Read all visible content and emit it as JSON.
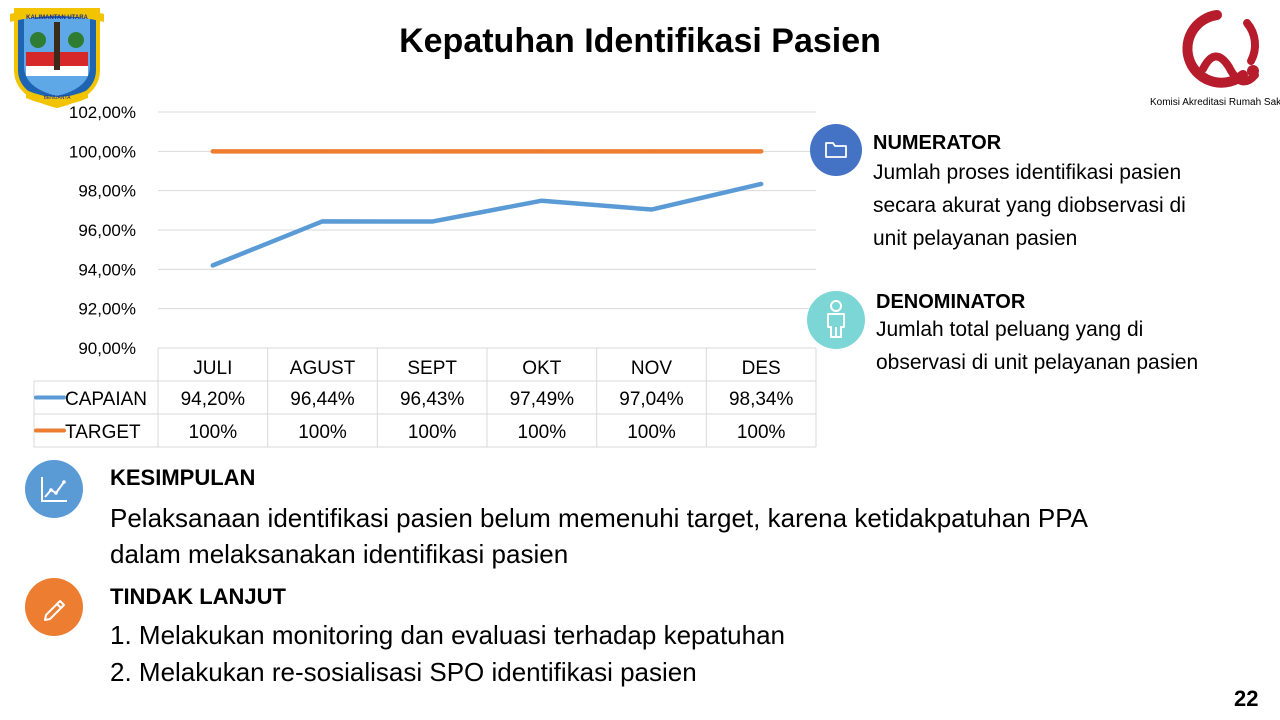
{
  "slide": {
    "title": "Kepatuhan Identifikasi Pasien",
    "page_number": "22"
  },
  "logos": {
    "left_banner": "KALIMANTAN UTARA",
    "left_motto": "BENUANTA",
    "right_caption": "Komisi Akreditasi Rumah Sakit"
  },
  "numerator": {
    "heading": "NUMERATOR",
    "lines": [
      "Jumlah proses identifikasi pasien",
      "secara akurat yang diobservasi di",
      "unit pelayanan pasien"
    ],
    "icon": "folder-icon",
    "color": "#4472c4"
  },
  "denominator": {
    "heading": "DENOMINATOR",
    "lines": [
      "Jumlah total peluang yang di",
      "observasi di unit pelayanan pasien"
    ],
    "icon": "person-icon",
    "color": "#7dd6d6"
  },
  "kesimpulan": {
    "heading": "KESIMPULAN",
    "lines": [
      "Pelaksanaan identifikasi pasien belum memenuhi target, karena ketidakpatuhan PPA",
      "dalam melaksanakan identifikasi pasien"
    ],
    "icon": "line-chart-icon",
    "color": "#5b9bd5"
  },
  "tindak_lanjut": {
    "heading": "TINDAK LANJUT",
    "items": [
      "1.  Melakukan monitoring dan evaluasi terhadap kepatuhan",
      "2.  Melakukan re-sosialisasi SPO identifikasi pasien"
    ],
    "icon": "pencil-icon",
    "color": "#ed7d31"
  },
  "chart_data": {
    "type": "line",
    "categories": [
      "JULI",
      "AGUST",
      "SEPT",
      "OKT",
      "NOV",
      "DES"
    ],
    "series": [
      {
        "name": "CAPAIAN",
        "values": [
          94.2,
          96.44,
          96.43,
          97.49,
          97.04,
          98.34
        ],
        "labels": [
          "94,20%",
          "96,44%",
          "96,43%",
          "97,49%",
          "97,04%",
          "98,34%"
        ],
        "color": "#5b9bd5"
      },
      {
        "name": "TARGET",
        "values": [
          100,
          100,
          100,
          100,
          100,
          100
        ],
        "labels": [
          "100%",
          "100%",
          "100%",
          "100%",
          "100%",
          "100%"
        ],
        "color": "#ed7d31"
      }
    ],
    "ylim": [
      90,
      102
    ],
    "yticks": [
      "90,00%",
      "92,00%",
      "94,00%",
      "96,00%",
      "98,00%",
      "100,00%",
      "102,00%"
    ],
    "grid": true,
    "legend": "data table below plot"
  }
}
